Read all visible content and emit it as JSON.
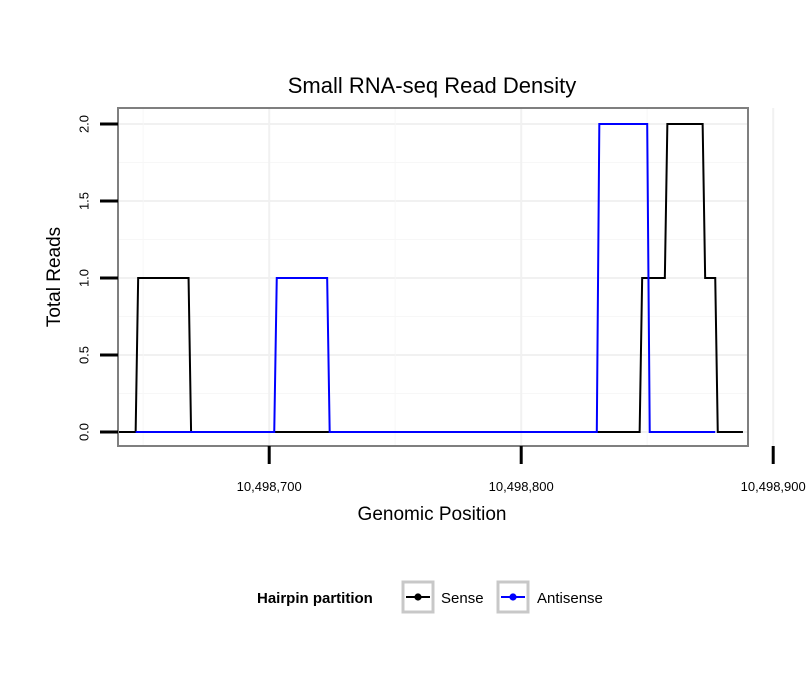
{
  "chart_data": {
    "type": "line",
    "title": "Small RNA-seq Read Density",
    "xlabel": "Genomic Position",
    "ylabel": "Total Reads",
    "xlim": [
      10498640,
      10498890
    ],
    "ylim": [
      0,
      2
    ],
    "x_ticks": [
      10498700,
      10498800,
      10498900
    ],
    "x_tick_labels": [
      "10,498,700",
      "10,498,800",
      "10,498,900"
    ],
    "y_ticks": [
      0,
      0.5,
      1,
      1.5,
      2
    ],
    "y_tick_labels": [
      "0.0",
      "0.5",
      "1.0",
      "1.5",
      "2.0"
    ],
    "grid": true,
    "legend": {
      "title": "Hairpin partition",
      "position": "bottom"
    },
    "series": [
      {
        "name": "Sense",
        "color": "#000000",
        "x": [
          10498640,
          10498647,
          10498648,
          10498668,
          10498669,
          10498847,
          10498848,
          10498857,
          10498858,
          10498872,
          10498873,
          10498877,
          10498878,
          10498888
        ],
        "y": [
          0,
          0,
          1,
          1,
          0,
          0,
          1,
          1,
          2,
          2,
          1,
          1,
          0,
          0
        ]
      },
      {
        "name": "Antisense",
        "color": "#0000ff",
        "x": [
          10498647,
          10498702,
          10498703,
          10498723,
          10498724,
          10498830,
          10498831,
          10498850,
          10498851,
          10498877
        ],
        "y": [
          0,
          0,
          1,
          1,
          0,
          0,
          2,
          2,
          0,
          0
        ]
      }
    ]
  }
}
